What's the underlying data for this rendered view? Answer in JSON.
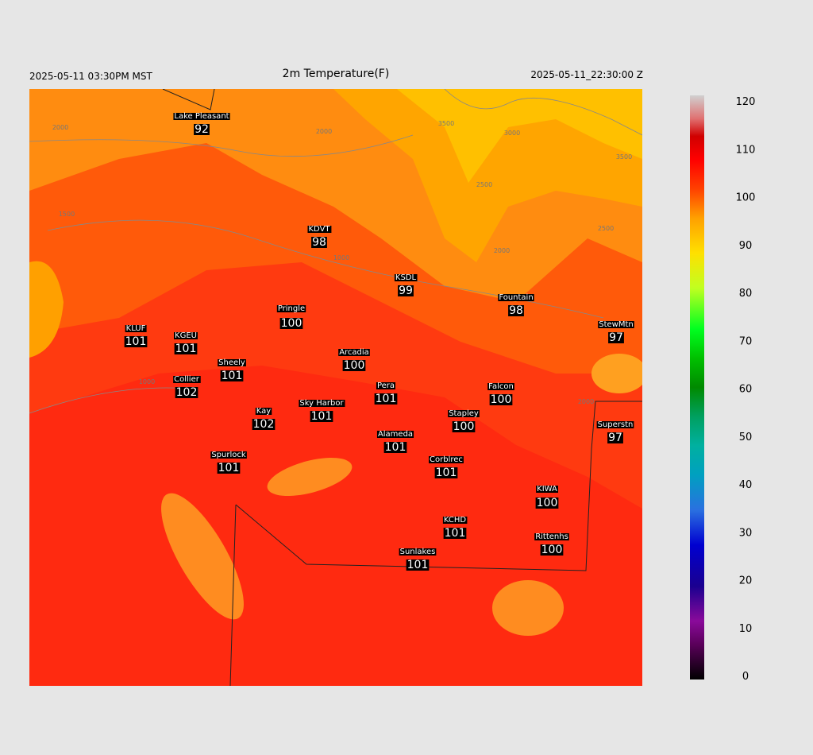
{
  "header": {
    "left": "2025-05-11 03:30PM MST",
    "title": "2m Temperature(F)",
    "right": "2025-05-11_22:30:00 Z"
  },
  "stations": [
    {
      "name": "Lake Pleasant",
      "value": 92
    },
    {
      "name": "KDVT",
      "value": 98
    },
    {
      "name": "KSDL",
      "value": 99
    },
    {
      "name": "Fountain",
      "value": 98
    },
    {
      "name": "StewMtn",
      "value": 97
    },
    {
      "name": "Pringle",
      "value": 100
    },
    {
      "name": "KLUF",
      "value": 101
    },
    {
      "name": "KGEU",
      "value": 101
    },
    {
      "name": "Arcadia",
      "value": 100
    },
    {
      "name": "Sheely",
      "value": 101
    },
    {
      "name": "Collier",
      "value": 102
    },
    {
      "name": "Pera",
      "value": 101
    },
    {
      "name": "Falcon",
      "value": 100
    },
    {
      "name": "Sky Harbor",
      "value": 101
    },
    {
      "name": "Kay",
      "value": 102
    },
    {
      "name": "Stapley",
      "value": 100
    },
    {
      "name": "Superstn",
      "value": 97
    },
    {
      "name": "Alameda",
      "value": 101
    },
    {
      "name": "Spurlock",
      "value": 101
    },
    {
      "name": "Corblrec",
      "value": 101
    },
    {
      "name": "KIWA",
      "value": 100
    },
    {
      "name": "KCHD",
      "value": 101
    },
    {
      "name": "Rittenhs",
      "value": 100
    },
    {
      "name": "Sunlakes",
      "value": 101
    }
  ],
  "colorbar": {
    "ticks": [
      0,
      10,
      20,
      30,
      40,
      50,
      60,
      70,
      80,
      90,
      100,
      110,
      120
    ]
  },
  "contour_labels": [
    "2000",
    "2000",
    "3500",
    "3000",
    "3500",
    "2500",
    "2500",
    "2000",
    "1500",
    "1000",
    "1000",
    "2000"
  ]
}
